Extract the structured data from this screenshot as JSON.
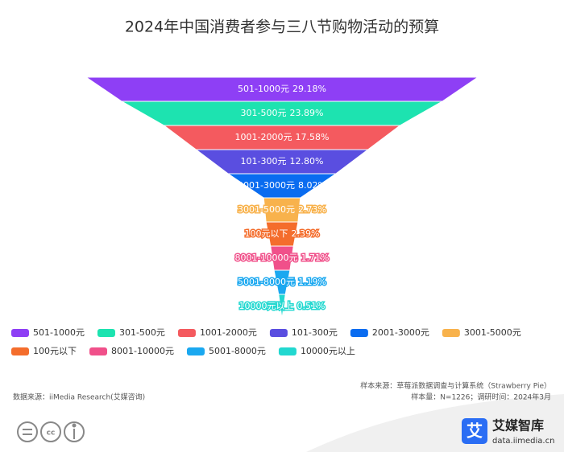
{
  "chart_data": {
    "type": "funnel",
    "title": "2024年中国消费者参与三八节购物活动的预算",
    "categories": [
      "501-1000元",
      "301-500元",
      "1001-2000元",
      "101-300元",
      "2001-3000元",
      "3001-5000元",
      "100元以下",
      "8001-10000元",
      "5001-8000元",
      "10000元以上"
    ],
    "values": [
      29.18,
      23.89,
      17.58,
      12.8,
      8.02,
      2.73,
      2.39,
      1.71,
      1.19,
      0.51
    ],
    "value_labels": [
      "29.18%",
      "23.89%",
      "17.58%",
      "12.80%",
      "8.02%",
      "2.73%",
      "2.39%",
      "1.71%",
      "1.19%",
      "0.51%"
    ],
    "colors": [
      "#8e3ff5",
      "#1de3b0",
      "#f45a5f",
      "#5a4ee0",
      "#0a6cf0",
      "#f8b24c",
      "#f46d2c",
      "#f0508a",
      "#1aa8f0",
      "#22d8d0"
    ],
    "source": "数据来源：iiMedia Research(艾媒咨询)",
    "sample_source": "样本来源：草莓派数据调查与计算系统（Strawberry Pie）",
    "sample_size": "样本量：N=1226；调研时间：2024年3月",
    "brand": "艾媒智库",
    "brand_url": "data.iimedia.cn"
  }
}
